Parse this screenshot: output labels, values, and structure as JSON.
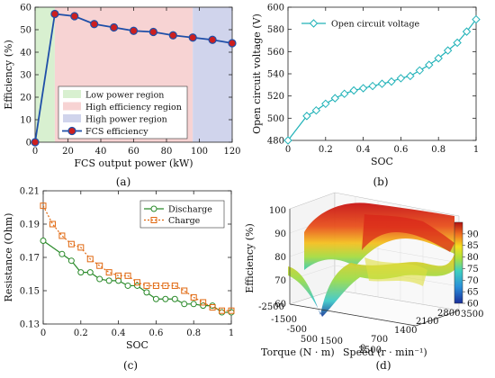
{
  "captions": [
    "(a)",
    "(b)",
    "(c)",
    "(d)"
  ],
  "chart_data": [
    {
      "type": "line",
      "xlabel": "FCS output power (kW)",
      "ylabel": "Efficiency (%)",
      "xlim": [
        0,
        120
      ],
      "ylim": [
        0,
        60
      ],
      "xticks": [
        0,
        20,
        40,
        60,
        80,
        100,
        120
      ],
      "yticks": [
        0,
        10,
        20,
        30,
        40,
        50,
        60
      ],
      "regions": [
        {
          "name": "Low power region",
          "x0": 0,
          "x1": 12,
          "color": "#d8f0d0"
        },
        {
          "name": "High efficiency region",
          "x0": 12,
          "x1": 96,
          "color": "#f7d3d3"
        },
        {
          "name": "High power region",
          "x0": 96,
          "x1": 120,
          "color": "#d0d4ec"
        }
      ],
      "series": [
        {
          "name": "FCS efficiency",
          "color": "#1f4fa8",
          "marker_color": "#cc1f1f",
          "x": [
            0,
            12,
            24,
            36,
            48,
            60,
            72,
            84,
            96,
            108,
            120
          ],
          "y": [
            0,
            57,
            56,
            52.5,
            51,
            49.5,
            49,
            47.5,
            46.5,
            45.5,
            44
          ]
        }
      ],
      "legend": "bottom-center"
    },
    {
      "type": "line",
      "xlabel": "SOC",
      "ylabel": "Open circuit voltage (V)",
      "xlim": [
        0,
        1
      ],
      "ylim": [
        480,
        600
      ],
      "xticks": [
        0,
        0.2,
        0.4,
        0.6,
        0.8,
        1
      ],
      "xtick_labels": [
        "0",
        "0.2",
        "0.4",
        "0.6",
        "0.8",
        "1"
      ],
      "yticks": [
        480,
        500,
        520,
        540,
        560,
        580,
        600
      ],
      "series": [
        {
          "name": "Open circuit voltage",
          "color": "#20b2b8",
          "marker": "diamond",
          "x": [
            0,
            0.1,
            0.15,
            0.2,
            0.25,
            0.3,
            0.35,
            0.4,
            0.45,
            0.5,
            0.55,
            0.6,
            0.65,
            0.7,
            0.75,
            0.8,
            0.85,
            0.9,
            0.95,
            1.0
          ],
          "y": [
            480,
            502,
            507,
            513,
            518,
            522,
            525,
            527,
            529,
            531,
            533,
            536,
            538,
            543,
            548,
            554,
            561,
            568,
            578,
            589
          ]
        }
      ],
      "legend": "top-left"
    },
    {
      "type": "line",
      "xlabel": "SOC",
      "ylabel": "Resistance (Ohm)",
      "xlim": [
        0,
        1
      ],
      "ylim": [
        0.13,
        0.21
      ],
      "xticks": [
        0,
        0.2,
        0.4,
        0.6,
        0.8,
        1
      ],
      "xtick_labels": [
        "0",
        "0.2",
        "0.4",
        "0.6",
        "0.8",
        "1"
      ],
      "yticks": [
        0.13,
        0.15,
        0.17,
        0.19,
        0.21
      ],
      "ytick_labels": [
        "0.13",
        "0.15",
        "0.17",
        "0.19",
        "0.21"
      ],
      "series": [
        {
          "name": "Discharge",
          "color": "#2a8a2a",
          "marker": "circle",
          "dash": false,
          "x": [
            0,
            0.1,
            0.15,
            0.2,
            0.25,
            0.3,
            0.35,
            0.4,
            0.45,
            0.5,
            0.55,
            0.6,
            0.65,
            0.7,
            0.75,
            0.8,
            0.85,
            0.9,
            0.95,
            1.0
          ],
          "y": [
            0.18,
            0.172,
            0.168,
            0.161,
            0.161,
            0.157,
            0.156,
            0.156,
            0.153,
            0.153,
            0.149,
            0.145,
            0.145,
            0.145,
            0.142,
            0.142,
            0.141,
            0.141,
            0.137,
            0.137
          ]
        },
        {
          "name": "Charge",
          "color": "#e06810",
          "marker": "square",
          "dash": true,
          "x": [
            0,
            0.05,
            0.1,
            0.15,
            0.2,
            0.25,
            0.3,
            0.35,
            0.4,
            0.45,
            0.5,
            0.55,
            0.6,
            0.65,
            0.7,
            0.75,
            0.8,
            0.85,
            0.9,
            0.95,
            1.0
          ],
          "y": [
            0.201,
            0.19,
            0.183,
            0.178,
            0.176,
            0.169,
            0.165,
            0.161,
            0.159,
            0.159,
            0.155,
            0.153,
            0.153,
            0.153,
            0.153,
            0.15,
            0.146,
            0.143,
            0.14,
            0.138,
            0.138
          ]
        }
      ],
      "legend": "top-right"
    },
    {
      "type": "surface3d",
      "zlabel": "Efficiency (%)",
      "xlabel": "Torque (N · m)",
      "ylabel": "Speed (r · min⁻¹)",
      "zticks": [
        "60",
        "70",
        "80",
        "90",
        "100"
      ],
      "xticks": [
        "-2500",
        "-1500",
        "-500",
        "500",
        "1500",
        "2500"
      ],
      "yticks": [
        "0",
        "700",
        "1400",
        "2100",
        "2800",
        "3500"
      ],
      "colorbar": {
        "min": 60,
        "max": 95,
        "ticks": [
          "60",
          "65",
          "70",
          "75",
          "80",
          "85",
          "90"
        ]
      }
    }
  ]
}
